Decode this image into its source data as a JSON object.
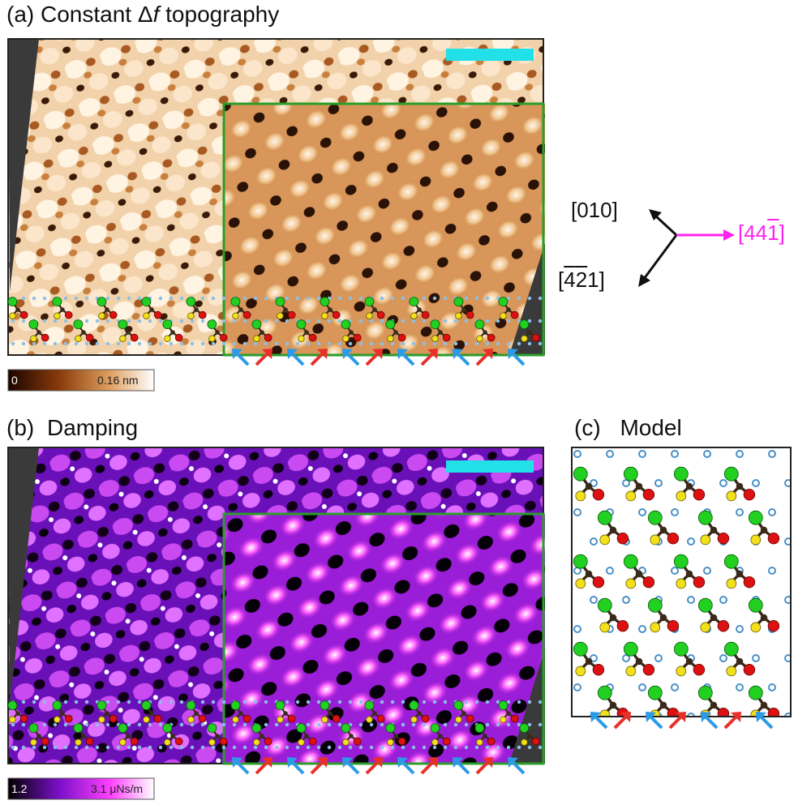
{
  "panels": {
    "a": {
      "letter": "(a)",
      "title_before": "Constant ",
      "title_delta": "Δ",
      "title_f": "f",
      "title_after": " topography"
    },
    "b": {
      "letter": "(b)",
      "title": "Damping"
    },
    "c": {
      "letter": "(c)",
      "title": "Model"
    }
  },
  "colorbars": {
    "a": {
      "min_label": "0",
      "max_label": "0.16 nm"
    },
    "b": {
      "min_label": "1.2",
      "max_label": "3.1 μNs/m"
    }
  },
  "directions": {
    "up": "[010]",
    "right_prefix": "[44",
    "right_bar": "1",
    "right_suffix": "]",
    "down_prefix": "[",
    "down_bar1": "4",
    "down_bar2": "2",
    "down_suffix": "1]",
    "right_color": "#ff22ee"
  },
  "colors": {
    "scale_bar": "#22e0e8",
    "zoom_frame": "#2a9d2a",
    "arrow_blue": "#2b9be8",
    "arrow_red": "#e8302b",
    "atom_green": "#22d022",
    "atom_red": "#dd1111",
    "atom_yellow": "#f2e01a",
    "atom_dark": "#3a2a1a",
    "atom_blue_ring": "#4a90c8"
  }
}
